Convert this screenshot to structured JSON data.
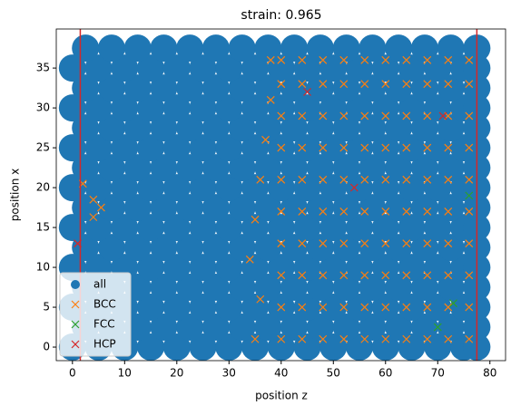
{
  "chart_data": {
    "type": "scatter",
    "title": "strain: 0.965",
    "x_label": "position z",
    "y_label": "position x",
    "xlim": [
      -3.1,
      83
    ],
    "ylim": [
      -1.7,
      39.9
    ],
    "xticks": [
      0,
      10,
      20,
      30,
      40,
      50,
      60,
      70,
      80
    ],
    "yticks": [
      0,
      5,
      10,
      15,
      20,
      25,
      30,
      35
    ],
    "legend": "lower left",
    "vlines": [
      1.5,
      77.5
    ],
    "vline_color": "#d62728",
    "series": [
      {
        "name": "all",
        "color": "#1f77b4",
        "marker": "circle",
        "x": [
          0,
          5,
          10,
          15,
          20,
          25,
          30,
          35,
          40,
          45,
          50,
          55,
          60,
          65,
          70,
          75,
          77.5,
          2.5,
          7.5,
          12.5,
          17.5,
          22.5,
          27.5,
          32.5,
          37.5,
          42.5,
          47.5,
          52.5,
          57.5,
          62.5,
          67.5,
          72.5,
          77.5,
          0,
          5,
          10,
          15,
          20,
          25,
          30,
          35,
          40,
          45,
          50,
          55,
          60,
          65,
          70,
          75,
          77.5,
          2.5,
          7.5,
          12.5,
          17.5,
          22.5,
          27.5,
          32.5,
          37.5,
          42.5,
          47.5,
          52.5,
          57.5,
          62.5,
          67.5,
          72.5,
          77.5,
          0,
          5,
          10,
          15,
          20,
          25,
          30,
          35,
          40,
          45,
          50,
          55,
          60,
          65,
          70,
          75,
          77.5,
          2.5,
          7.5,
          12.5,
          17.5,
          22.5,
          27.5,
          32.5,
          37.5,
          42.5,
          47.5,
          52.5,
          57.5,
          62.5,
          67.5,
          72.5,
          77.5,
          0,
          5,
          10,
          15,
          20,
          25,
          30,
          35,
          40,
          45,
          50,
          55,
          60,
          65,
          70,
          75,
          77.5,
          2.5,
          7.5,
          12.5,
          17.5,
          22.5,
          27.5,
          32.5,
          37.5,
          42.5,
          47.5,
          52.5,
          57.5,
          62.5,
          67.5,
          72.5,
          77.5,
          0,
          5,
          10,
          15,
          20,
          25,
          30,
          35,
          40,
          45,
          50,
          55,
          60,
          65,
          70,
          75,
          77.5,
          2.5,
          7.5,
          12.5,
          17.5,
          22.5,
          27.5,
          32.5,
          37.5,
          42.5,
          47.5,
          52.5,
          57.5,
          62.5,
          67.5,
          72.5,
          77.5,
          0,
          5,
          10,
          15,
          20,
          25,
          30,
          35,
          40,
          45,
          50,
          55,
          60,
          65,
          70,
          75,
          77.5,
          2.5,
          7.5,
          12.5,
          17.5,
          22.5,
          27.5,
          32.5,
          37.5,
          42.5,
          47.5,
          52.5,
          57.5,
          62.5,
          67.5,
          72.5,
          77.5,
          0,
          5,
          10,
          15,
          20,
          25,
          30,
          35,
          40,
          45,
          50,
          55,
          60,
          65,
          70,
          75,
          77.5,
          2.5,
          7.5,
          12.5,
          17.5,
          22.5,
          27.5,
          32.5,
          37.5,
          42.5,
          47.5,
          52.5,
          57.5,
          62.5,
          67.5,
          72.5,
          77.5,
          0,
          5,
          10,
          15,
          20,
          25,
          30,
          35,
          40,
          45,
          50,
          55,
          60,
          65,
          70,
          75,
          77.5,
          2.5,
          7.5,
          12.5,
          17.5,
          22.5,
          27.5,
          32.5,
          37.5,
          42.5,
          47.5,
          52.5,
          57.5,
          62.5,
          67.5,
          72.5,
          77.5
        ],
        "values": [
          0,
          0,
          0,
          0,
          0,
          0,
          0,
          0,
          0,
          0,
          0,
          0,
          0,
          0,
          0,
          0,
          0,
          2.5,
          2.5,
          2.5,
          2.5,
          2.5,
          2.5,
          2.5,
          2.5,
          2.5,
          2.5,
          2.5,
          2.5,
          2.5,
          2.5,
          2.5,
          2.5,
          5,
          5,
          5,
          5,
          5,
          5,
          5,
          5,
          5,
          5,
          5,
          5,
          5,
          5,
          5,
          5,
          5,
          7.5,
          7.5,
          7.5,
          7.5,
          7.5,
          7.5,
          7.5,
          7.5,
          7.5,
          7.5,
          7.5,
          7.5,
          7.5,
          7.5,
          7.5,
          7.5,
          10,
          10,
          10,
          10,
          10,
          10,
          10,
          10,
          10,
          10,
          10,
          10,
          10,
          10,
          10,
          10,
          10,
          12.5,
          12.5,
          12.5,
          12.5,
          12.5,
          12.5,
          12.5,
          12.5,
          12.5,
          12.5,
          12.5,
          12.5,
          12.5,
          12.5,
          12.5,
          12.5,
          15,
          15,
          15,
          15,
          15,
          15,
          15,
          15,
          15,
          15,
          15,
          15,
          15,
          15,
          15,
          15,
          15,
          17.5,
          17.5,
          17.5,
          17.5,
          17.5,
          17.5,
          17.5,
          17.5,
          17.5,
          17.5,
          17.5,
          17.5,
          17.5,
          17.5,
          17.5,
          17.5,
          20,
          20,
          20,
          20,
          20,
          20,
          20,
          20,
          20,
          20,
          20,
          20,
          20,
          20,
          20,
          20,
          20,
          22.5,
          22.5,
          22.5,
          22.5,
          22.5,
          22.5,
          22.5,
          22.5,
          22.5,
          22.5,
          22.5,
          22.5,
          22.5,
          22.5,
          22.5,
          22.5,
          25,
          25,
          25,
          25,
          25,
          25,
          25,
          25,
          25,
          25,
          25,
          25,
          25,
          25,
          25,
          25,
          25,
          27.5,
          27.5,
          27.5,
          27.5,
          27.5,
          27.5,
          27.5,
          27.5,
          27.5,
          27.5,
          27.5,
          27.5,
          27.5,
          27.5,
          27.5,
          27.5,
          30,
          30,
          30,
          30,
          30,
          30,
          30,
          30,
          30,
          30,
          30,
          30,
          30,
          30,
          30,
          30,
          30,
          32.5,
          32.5,
          32.5,
          32.5,
          32.5,
          32.5,
          32.5,
          32.5,
          32.5,
          32.5,
          32.5,
          32.5,
          32.5,
          32.5,
          32.5,
          32.5,
          35,
          35,
          35,
          35,
          35,
          35,
          35,
          35,
          35,
          35,
          35,
          35,
          35,
          35,
          35,
          35,
          35,
          37.5,
          37.5,
          37.5,
          37.5,
          37.5,
          37.5,
          37.5,
          37.5,
          37.5,
          37.5,
          37.5,
          37.5,
          37.5,
          37.5,
          37.5,
          37.5
        ]
      },
      {
        "name": "BCC",
        "color": "#ff7f0e",
        "marker": "x",
        "x": [
          40,
          44,
          48,
          52,
          56,
          60,
          64,
          68,
          72,
          76,
          40,
          44,
          48,
          52,
          56,
          60,
          64,
          68,
          72,
          76,
          40,
          44,
          48,
          52,
          56,
          60,
          64,
          68,
          72,
          76,
          40,
          44,
          48,
          52,
          56,
          60,
          64,
          68,
          72,
          76,
          40,
          44,
          48,
          52,
          56,
          60,
          64,
          68,
          72,
          76,
          40,
          44,
          48,
          52,
          56,
          60,
          64,
          68,
          72,
          76,
          40,
          44,
          48,
          52,
          56,
          60,
          64,
          68,
          72,
          76,
          40,
          44,
          48,
          52,
          56,
          60,
          64,
          68,
          72,
          76,
          40,
          44,
          48,
          52,
          56,
          60,
          64,
          68,
          72,
          76,
          40,
          44,
          48,
          52,
          56,
          60,
          64,
          68,
          72,
          76,
          35,
          36,
          34,
          35,
          36,
          37,
          38,
          38,
          2,
          4,
          5.5,
          4
        ],
        "values": [
          1,
          1,
          1,
          1,
          1,
          1,
          1,
          1,
          1,
          1,
          5,
          5,
          5,
          5,
          5,
          5,
          5,
          5,
          5,
          5,
          9,
          9,
          9,
          9,
          9,
          9,
          9,
          9,
          9,
          9,
          13,
          13,
          13,
          13,
          13,
          13,
          13,
          13,
          13,
          13,
          17,
          17,
          17,
          17,
          17,
          17,
          17,
          17,
          17,
          17,
          21,
          21,
          21,
          21,
          21,
          21,
          21,
          21,
          21,
          21,
          25,
          25,
          25,
          25,
          25,
          25,
          25,
          25,
          25,
          25,
          29,
          29,
          29,
          29,
          29,
          29,
          29,
          29,
          29,
          29,
          33,
          33,
          33,
          33,
          33,
          33,
          33,
          33,
          33,
          33,
          36,
          36,
          36,
          36,
          36,
          36,
          36,
          36,
          36,
          36,
          1,
          6,
          11,
          16,
          21,
          26,
          31,
          36,
          20.5,
          18.5,
          17.5,
          16.3
        ]
      },
      {
        "name": "FCC",
        "color": "#2ca02c",
        "marker": "x",
        "x": [
          76,
          73,
          70
        ],
        "values": [
          19,
          5.5,
          2.5
        ]
      },
      {
        "name": "HCP",
        "color": "#d62728",
        "marker": "x",
        "x": [
          1,
          45,
          54,
          71
        ],
        "values": [
          13,
          32,
          20,
          29
        ]
      }
    ]
  }
}
